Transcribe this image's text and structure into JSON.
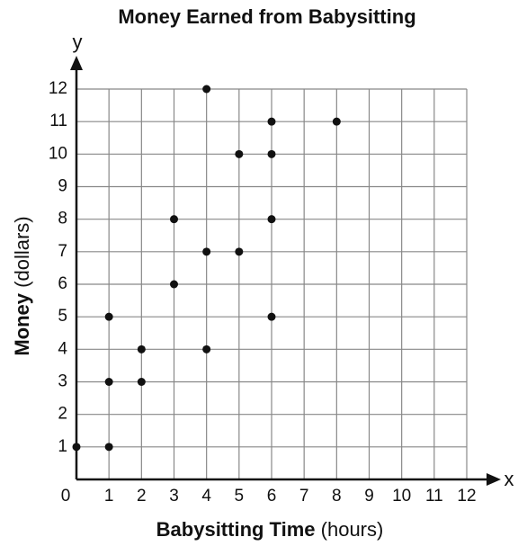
{
  "chart_data": {
    "type": "scatter",
    "title": "Money Earned from Babysitting",
    "x_label": {
      "main": "Babysitting Time",
      "unit": "(hours)"
    },
    "y_label": {
      "main": "Money",
      "unit": "(dollars)"
    },
    "x_axis_letter": "x",
    "y_axis_letter": "y",
    "x": [
      0,
      1,
      1,
      1,
      2,
      2,
      3,
      3,
      4,
      4,
      4,
      5,
      5,
      6,
      6,
      6,
      6,
      8
    ],
    "values": [
      1,
      1,
      3,
      5,
      3,
      4,
      6,
      8,
      4,
      7,
      12,
      7,
      10,
      5,
      8,
      10,
      11,
      11
    ],
    "color": "#111111",
    "xlim": [
      0,
      12
    ],
    "ylim": [
      0,
      12
    ],
    "xticks": [
      0,
      1,
      2,
      3,
      4,
      5,
      6,
      7,
      8,
      9,
      10,
      11,
      12
    ],
    "yticks": [
      1,
      2,
      3,
      4,
      5,
      6,
      7,
      8,
      9,
      10,
      11,
      12
    ],
    "grid": true
  }
}
